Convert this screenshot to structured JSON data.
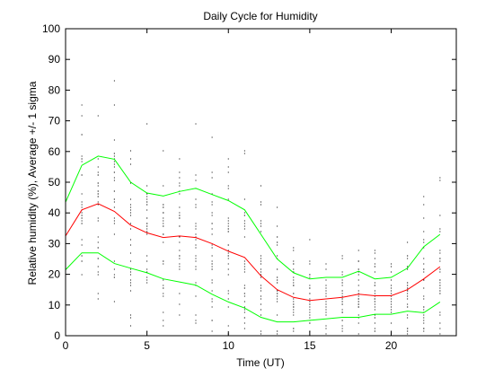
{
  "chart_data": {
    "type": "line",
    "title": "Daily Cycle for Humidity",
    "xlabel": "Time (UT)",
    "ylabel": "Relative humidity (%), Average +/- 1 sigma",
    "xlim": [
      0,
      24
    ],
    "ylim": [
      0,
      100
    ],
    "xticks": [
      0,
      5,
      10,
      15,
      20
    ],
    "yticks": [
      0,
      10,
      20,
      30,
      40,
      50,
      60,
      70,
      80,
      90,
      100
    ],
    "grid": false,
    "colors": {
      "average": "#ff0000",
      "sigma": "#00ff00",
      "scatter": "#000000"
    },
    "x": [
      0,
      1,
      2,
      3,
      4,
      5,
      6,
      7,
      8,
      9,
      10,
      11,
      12,
      13,
      14,
      15,
      16,
      17,
      18,
      19,
      20,
      21,
      22,
      23
    ],
    "series": [
      {
        "role": "upper",
        "color": "#00ff00",
        "values": [
          43.5,
          55.5,
          58.5,
          57.5,
          50,
          46.5,
          45.5,
          47,
          48,
          46,
          44,
          41,
          33,
          25,
          20.5,
          18.5,
          19,
          19,
          21,
          18.5,
          19,
          22,
          29,
          33
        ]
      },
      {
        "role": "average",
        "color": "#ff0000",
        "values": [
          32.5,
          41,
          43,
          40.5,
          36,
          33.5,
          32,
          32.5,
          32,
          30,
          27.5,
          25.5,
          19.5,
          15,
          12.5,
          11.5,
          12,
          12.5,
          13.5,
          13,
          13,
          15,
          18.5,
          22.5
        ]
      },
      {
        "role": "lower",
        "color": "#00ff00",
        "values": [
          21.5,
          27,
          27,
          23.5,
          22,
          20.5,
          18.5,
          17.5,
          16.5,
          13.5,
          11,
          9,
          6,
          4.5,
          4.5,
          5,
          5.5,
          6,
          6,
          7,
          7,
          8,
          7.5,
          11
        ]
      }
    ]
  }
}
